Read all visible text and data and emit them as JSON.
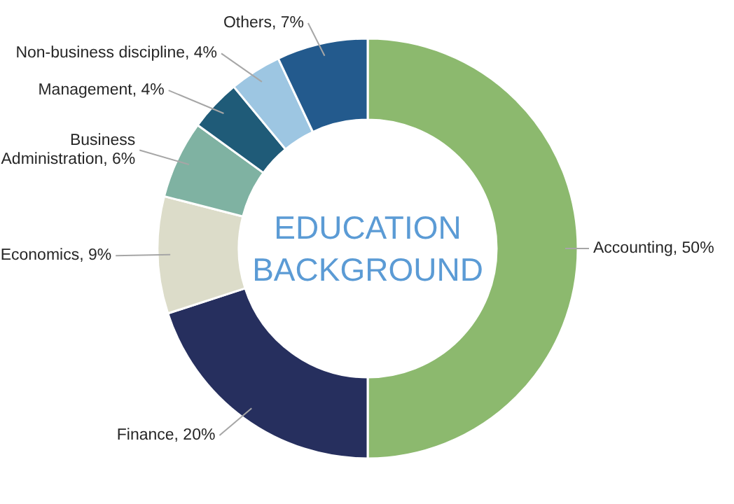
{
  "chart_data": {
    "type": "donut",
    "title": "EDUCATION BACKGROUND",
    "categories": [
      "Accounting",
      "Finance",
      "Economics",
      "Business\nAdministration",
      "Management",
      "Non-business discipline",
      "Others"
    ],
    "values": [
      50,
      20,
      9,
      6,
      4,
      4,
      7
    ],
    "value_labels": [
      "50%",
      "20%",
      "9%",
      "6%",
      "4%",
      "4%",
      "7%"
    ],
    "colors": [
      "#8cb96e",
      "#262f5e",
      "#dcdcc9",
      "#7fb2a2",
      "#1f5b78",
      "#9dc6e2",
      "#235a8d"
    ],
    "legend": false
  }
}
